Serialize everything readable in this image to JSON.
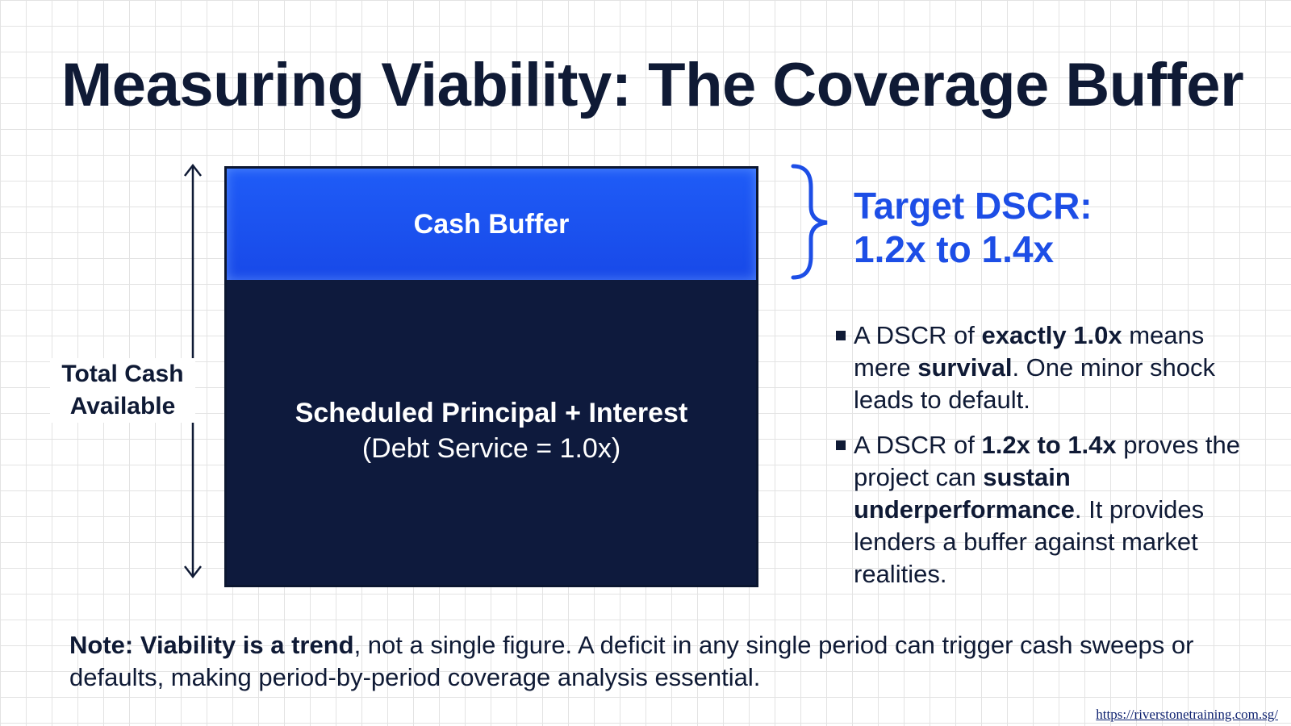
{
  "title": "Measuring Viability: The Coverage Buffer",
  "diagram": {
    "axis_label": [
      "Total Cash",
      "Available"
    ],
    "buffer_label": "Cash Buffer",
    "debt_label": "Scheduled Principal + Interest",
    "debt_sublabel": "(Debt Service = 1.0x)",
    "target": [
      "Target DSCR:",
      "1.2x to 1.4x"
    ]
  },
  "bullets": [
    {
      "segments": [
        {
          "text": "A DSCR of ",
          "bold": false
        },
        {
          "text": "exactly 1.0x",
          "bold": true
        },
        {
          "text": " means mere ",
          "bold": false
        },
        {
          "text": "survival",
          "bold": true
        },
        {
          "text": ". One minor shock leads to default.",
          "bold": false
        }
      ]
    },
    {
      "segments": [
        {
          "text": "A DSCR of ",
          "bold": false
        },
        {
          "text": "1.2x to 1.4x",
          "bold": true
        },
        {
          "text": " proves the project can ",
          "bold": false
        },
        {
          "text": "sustain underperformance",
          "bold": true
        },
        {
          "text": ". It provides lenders a buffer against market realities.",
          "bold": false
        }
      ]
    }
  ],
  "note": {
    "bold": "Note: Viability is a trend",
    "rest": ", not a single figure. A deficit in any single period can trigger cash sweeps or defaults, making period-by-period coverage analysis essential."
  },
  "url": "https://riverstonetraining.com.sg/",
  "colors": {
    "navy": "#0e1a3d",
    "accent_blue": "#1d4ee6",
    "buffer_blue": "#1f5cf7"
  }
}
